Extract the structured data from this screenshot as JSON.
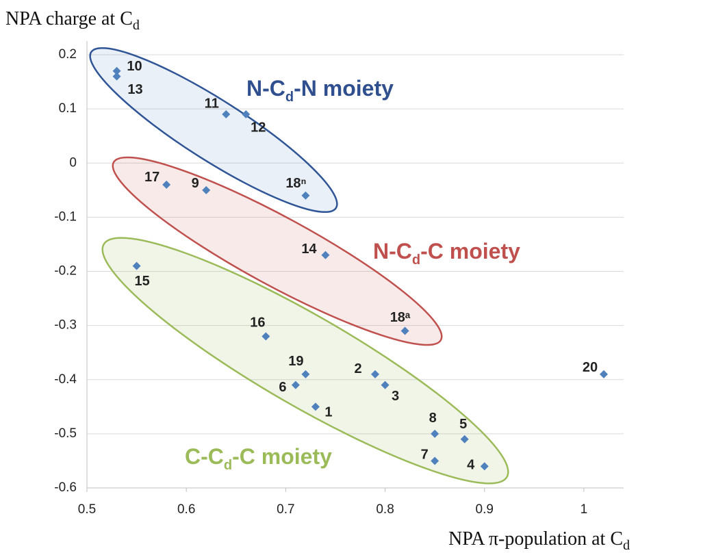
{
  "chart_data": {
    "type": "scatter",
    "y_label": {
      "text": "NPA charge at C",
      "sub": "d"
    },
    "x_label": {
      "text": "NPA π-population at C",
      "sub": "d"
    },
    "x": [
      0.53,
      0.53,
      0.64,
      0.66,
      0.58,
      0.62,
      0.72,
      0.74,
      0.55,
      0.82,
      0.68,
      0.72,
      0.79,
      0.71,
      0.8,
      0.73,
      0.85,
      0.88,
      0.85,
      0.9,
      1.02
    ],
    "values": [
      0.17,
      0.16,
      0.09,
      0.09,
      -0.04,
      -0.05,
      -0.06,
      -0.17,
      -0.19,
      -0.31,
      -0.32,
      -0.39,
      -0.39,
      -0.41,
      -0.41,
      -0.45,
      -0.5,
      -0.51,
      -0.55,
      -0.56,
      -0.39
    ],
    "point_labels": [
      "10",
      "13",
      "11",
      "12",
      "17",
      "9",
      "18ⁿ",
      "14",
      "15",
      "18ᵃ",
      "16",
      "19",
      "2",
      "6",
      "3",
      "1",
      "8",
      "5",
      "7",
      "4",
      "20"
    ],
    "color": "#4f81bd",
    "xlim": [
      0.5,
      1.04
    ],
    "ylim": [
      -0.6,
      0.2
    ],
    "xticks": [
      0.5,
      0.6,
      0.7,
      0.8,
      0.9,
      1
    ],
    "yticks": [
      0.2,
      0.1,
      0,
      -0.1,
      -0.2,
      -0.3,
      -0.4,
      -0.5,
      -0.6
    ],
    "grid": true,
    "annotations": [
      {
        "parts": [
          "N-C",
          "d",
          "-N moiety"
        ],
        "color": "#2f4f8f"
      },
      {
        "parts": [
          "N-C",
          "d",
          "-C moiety"
        ],
        "color": "#c0504d"
      },
      {
        "parts": [
          "C-C",
          "d",
          "-C moiety"
        ],
        "color": "#9bbb59"
      }
    ]
  }
}
